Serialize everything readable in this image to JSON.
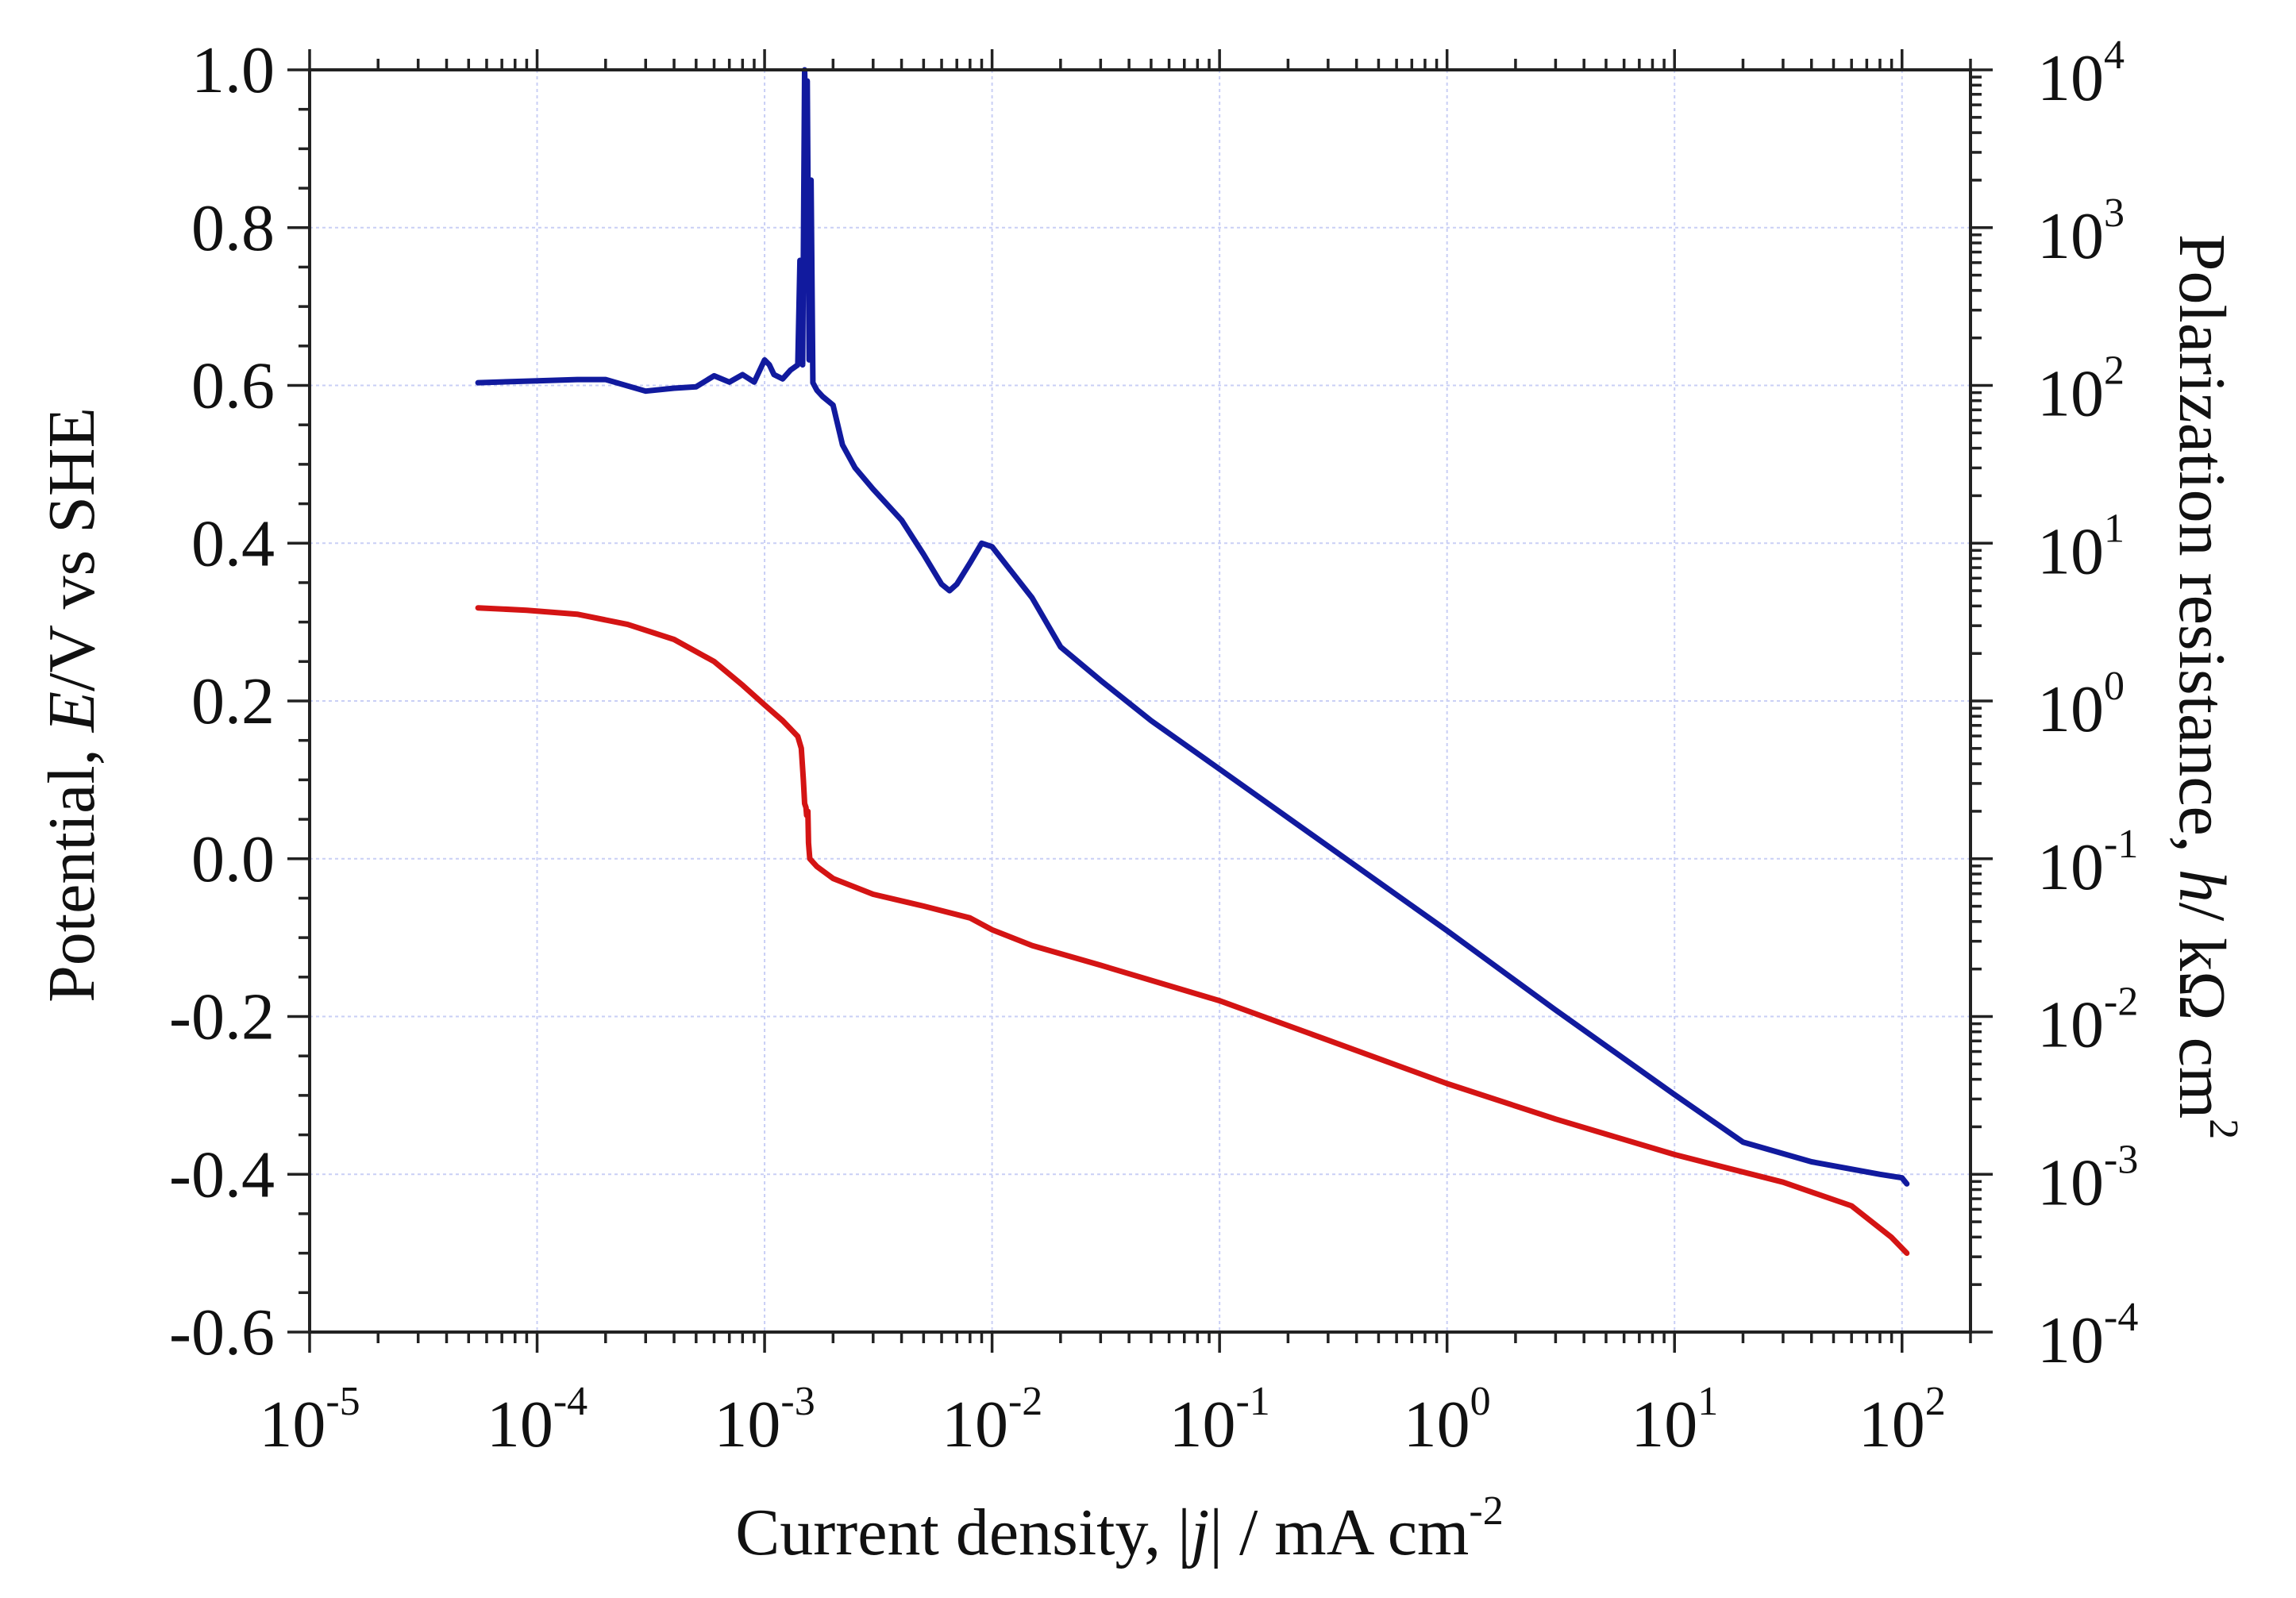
{
  "chart_data": {
    "type": "line",
    "title": "",
    "xlabel": "Current density, |j| / mA cm-2",
    "xlabel_parts": {
      "prefix": "Current density, |",
      "var": "j",
      "suffix": "| / mA cm",
      "exp": "-2"
    },
    "ylabel": "Potential, E/V vs SHE",
    "ylabel_parts": {
      "prefix": "Potential, ",
      "var": "E",
      "suffix": "/V vs SHE"
    },
    "y2label": "Polarization resistance, h/ kΩ cm2",
    "y2label_parts": {
      "prefix": "Polarization resistance, ",
      "var": "h",
      "suffix": "/ kΩ cm",
      "exp": "2"
    },
    "xscale": "log",
    "xlim": [
      1e-05,
      200
    ],
    "ylim": [
      -0.6,
      1.0
    ],
    "y2scale": "log",
    "y2lim": [
      0.0001,
      10000
    ],
    "grid": true,
    "x_ticks": [
      {
        "base": "10",
        "exp": "-5",
        "value": 1e-05
      },
      {
        "base": "10",
        "exp": "-4",
        "value": 0.0001
      },
      {
        "base": "10",
        "exp": "-3",
        "value": 0.001
      },
      {
        "base": "10",
        "exp": "-2",
        "value": 0.01
      },
      {
        "base": "10",
        "exp": "-1",
        "value": 0.1
      },
      {
        "base": "10",
        "exp": "0",
        "value": 1
      },
      {
        "base": "10",
        "exp": "1",
        "value": 10
      },
      {
        "base": "10",
        "exp": "2",
        "value": 100
      }
    ],
    "y_ticks": [
      "1.0",
      "0.8",
      "0.6",
      "0.4",
      "0.2",
      "0.0",
      "-0.2",
      "-0.4",
      "-0.6"
    ],
    "y2_ticks": [
      {
        "base": "10",
        "exp": "4",
        "value": 10000
      },
      {
        "base": "10",
        "exp": "3",
        "value": 1000
      },
      {
        "base": "10",
        "exp": "2",
        "value": 100
      },
      {
        "base": "10",
        "exp": "1",
        "value": 10
      },
      {
        "base": "10",
        "exp": "0",
        "value": 1
      },
      {
        "base": "10",
        "exp": "-1",
        "value": 0.1
      },
      {
        "base": "10",
        "exp": "-2",
        "value": 0.01
      },
      {
        "base": "10",
        "exp": "-3",
        "value": 0.001
      },
      {
        "base": "10",
        "exp": "-4",
        "value": 0.0001
      }
    ],
    "series": [
      {
        "name": "Potential (E)",
        "axis": "left",
        "color": "#d41414",
        "points": [
          [
            5.5e-05,
            0.318
          ],
          [
            9e-05,
            0.315
          ],
          [
            0.00015,
            0.31
          ],
          [
            0.00025,
            0.297
          ],
          [
            0.0004,
            0.278
          ],
          [
            0.0006,
            0.25
          ],
          [
            0.0008,
            0.22
          ],
          [
            0.001,
            0.195
          ],
          [
            0.0012,
            0.175
          ],
          [
            0.0014,
            0.155
          ],
          [
            0.00145,
            0.14
          ],
          [
            0.00148,
            0.1
          ],
          [
            0.0015,
            0.07
          ],
          [
            0.00152,
            0.065
          ],
          [
            0.00153,
            0.055
          ],
          [
            0.00155,
            0.06
          ],
          [
            0.00156,
            0.02
          ],
          [
            0.00158,
            0.0
          ],
          [
            0.0017,
            -0.01
          ],
          [
            0.002,
            -0.025
          ],
          [
            0.003,
            -0.045
          ],
          [
            0.005,
            -0.06
          ],
          [
            0.008,
            -0.075
          ],
          [
            0.01,
            -0.09
          ],
          [
            0.015,
            -0.11
          ],
          [
            0.03,
            -0.135
          ],
          [
            0.1,
            -0.18
          ],
          [
            0.3,
            -0.23
          ],
          [
            1,
            -0.285
          ],
          [
            3,
            -0.33
          ],
          [
            10,
            -0.375
          ],
          [
            30,
            -0.41
          ],
          [
            60,
            -0.44
          ],
          [
            90,
            -0.48
          ],
          [
            105,
            -0.5
          ]
        ]
      },
      {
        "name": "Polarization resistance (h)",
        "axis": "right",
        "color": "#111a9e",
        "points": [
          [
            5.5e-05,
            104
          ],
          [
            0.0001,
            107
          ],
          [
            0.00015,
            109
          ],
          [
            0.0002,
            109
          ],
          [
            0.0003,
            92
          ],
          [
            0.0004,
            96
          ],
          [
            0.0005,
            98
          ],
          [
            0.0006,
            115
          ],
          [
            0.0007,
            105
          ],
          [
            0.0008,
            117
          ],
          [
            0.0009,
            105
          ],
          [
            0.001,
            145
          ],
          [
            0.00105,
            135
          ],
          [
            0.0011,
            117
          ],
          [
            0.0012,
            110
          ],
          [
            0.0013,
            125
          ],
          [
            0.0014,
            135
          ],
          [
            0.00143,
            620
          ],
          [
            0.00147,
            135
          ],
          [
            0.0015,
            10000
          ],
          [
            0.00152,
            4000
          ],
          [
            0.00154,
            8500
          ],
          [
            0.00157,
            145
          ],
          [
            0.0016,
            2000
          ],
          [
            0.00163,
            104
          ],
          [
            0.0017,
            93
          ],
          [
            0.0018,
            85
          ],
          [
            0.002,
            75
          ],
          [
            0.0022,
            42
          ],
          [
            0.0025,
            30
          ],
          [
            0.003,
            22
          ],
          [
            0.004,
            14
          ],
          [
            0.005,
            8.5
          ],
          [
            0.006,
            5.5
          ],
          [
            0.0065,
            5.0
          ],
          [
            0.007,
            5.5
          ],
          [
            0.008,
            7.5
          ],
          [
            0.009,
            10
          ],
          [
            0.01,
            9.5
          ],
          [
            0.015,
            4.5
          ],
          [
            0.02,
            2.2
          ],
          [
            0.03,
            1.35
          ],
          [
            0.05,
            0.75
          ],
          [
            0.1,
            0.37
          ],
          [
            0.3,
            0.12
          ],
          [
            1,
            0.035
          ],
          [
            3,
            0.011
          ],
          [
            10,
            0.0032
          ],
          [
            20,
            0.0016
          ],
          [
            40,
            0.0012
          ],
          [
            80,
            0.001
          ],
          [
            100,
            0.00095
          ],
          [
            105,
            0.00087
          ]
        ]
      }
    ]
  }
}
